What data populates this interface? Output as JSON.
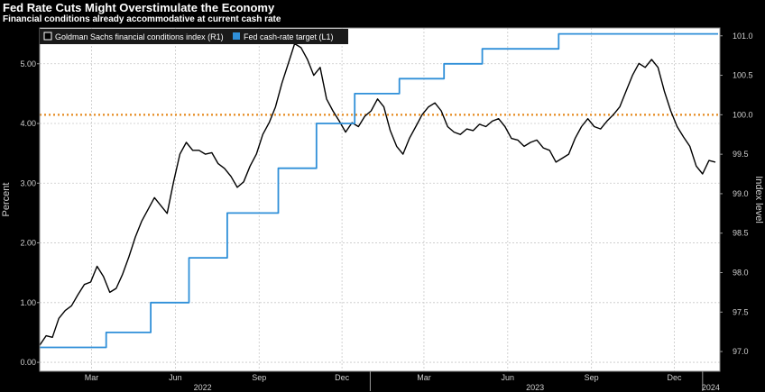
{
  "title": "Fed Rate Cuts Might Overstimulate the Economy",
  "subtitle": "Financial conditions already accommodative at current cash rate",
  "colors": {
    "background": "#ffffff",
    "fci_line": "#000000",
    "fed_line": "#2f8fd8",
    "reference_line": "#e68a1e"
  },
  "chart_data": {
    "type": "line",
    "left_axis": {
      "label": "Percent",
      "ticks": [
        "0.00",
        "1.00",
        "2.00",
        "3.00",
        "4.00",
        "5.00"
      ],
      "range": [
        -0.15,
        5.6
      ]
    },
    "right_axis": {
      "label": "Index level",
      "ticks": [
        "97.0",
        "97.5",
        "98.0",
        "98.5",
        "99.0",
        "99.5",
        "100.0",
        "100.5",
        "101.0"
      ],
      "range": [
        96.75,
        101.1
      ]
    },
    "x_axis": {
      "month_ticks": [
        "Mar",
        "Jun",
        "Sep",
        "Dec",
        "Mar",
        "Jun",
        "Sep",
        "Dec"
      ],
      "year_labels": [
        "2022",
        "2023",
        "2024"
      ],
      "range": [
        "2022-01-03",
        "2024-01-20"
      ]
    },
    "reference_line": {
      "axis": "right",
      "value": 100.0,
      "style": "dotted"
    },
    "legend": {
      "position": "top-left",
      "entries": [
        "Goldman Sachs financial conditions index (R1)",
        "Fed cash-rate target (L1)"
      ]
    },
    "series": [
      {
        "name": "Goldman Sachs financial conditions index (R1)",
        "axis": "right",
        "color": "#000000",
        "points": [
          [
            "2022-01-03",
            97.08
          ],
          [
            "2022-01-10",
            97.2
          ],
          [
            "2022-01-17",
            97.18
          ],
          [
            "2022-01-24",
            97.42
          ],
          [
            "2022-01-31",
            97.52
          ],
          [
            "2022-02-07",
            97.58
          ],
          [
            "2022-02-14",
            97.72
          ],
          [
            "2022-02-21",
            97.85
          ],
          [
            "2022-02-28",
            97.88
          ],
          [
            "2022-03-07",
            98.08
          ],
          [
            "2022-03-14",
            97.95
          ],
          [
            "2022-03-21",
            97.75
          ],
          [
            "2022-03-28",
            97.8
          ],
          [
            "2022-04-04",
            97.98
          ],
          [
            "2022-04-11",
            98.2
          ],
          [
            "2022-04-18",
            98.45
          ],
          [
            "2022-04-25",
            98.65
          ],
          [
            "2022-05-02",
            98.8
          ],
          [
            "2022-05-09",
            98.95
          ],
          [
            "2022-05-16",
            98.85
          ],
          [
            "2022-05-23",
            98.75
          ],
          [
            "2022-05-30",
            99.15
          ],
          [
            "2022-06-06",
            99.5
          ],
          [
            "2022-06-13",
            99.65
          ],
          [
            "2022-06-20",
            99.55
          ],
          [
            "2022-06-27",
            99.55
          ],
          [
            "2022-07-04",
            99.5
          ],
          [
            "2022-07-11",
            99.52
          ],
          [
            "2022-07-18",
            99.38
          ],
          [
            "2022-07-25",
            99.32
          ],
          [
            "2022-08-01",
            99.22
          ],
          [
            "2022-08-08",
            99.08
          ],
          [
            "2022-08-15",
            99.15
          ],
          [
            "2022-08-22",
            99.35
          ],
          [
            "2022-08-29",
            99.5
          ],
          [
            "2022-09-05",
            99.75
          ],
          [
            "2022-09-12",
            99.9
          ],
          [
            "2022-09-19",
            100.1
          ],
          [
            "2022-09-26",
            100.4
          ],
          [
            "2022-10-03",
            100.65
          ],
          [
            "2022-10-10",
            100.9
          ],
          [
            "2022-10-17",
            100.85
          ],
          [
            "2022-10-24",
            100.7
          ],
          [
            "2022-10-31",
            100.5
          ],
          [
            "2022-11-07",
            100.6
          ],
          [
            "2022-11-14",
            100.2
          ],
          [
            "2022-11-21",
            100.05
          ],
          [
            "2022-11-28",
            99.92
          ],
          [
            "2022-12-05",
            99.78
          ],
          [
            "2022-12-12",
            99.9
          ],
          [
            "2022-12-19",
            99.85
          ],
          [
            "2022-12-26",
            99.98
          ],
          [
            "2023-01-02",
            100.05
          ],
          [
            "2023-01-09",
            100.2
          ],
          [
            "2023-01-16",
            100.1
          ],
          [
            "2023-01-23",
            99.8
          ],
          [
            "2023-01-30",
            99.6
          ],
          [
            "2023-02-06",
            99.5
          ],
          [
            "2023-02-13",
            99.7
          ],
          [
            "2023-02-20",
            99.85
          ],
          [
            "2023-02-27",
            100.0
          ],
          [
            "2023-03-06",
            100.1
          ],
          [
            "2023-03-13",
            100.15
          ],
          [
            "2023-03-20",
            100.05
          ],
          [
            "2023-03-27",
            99.85
          ],
          [
            "2023-04-03",
            99.78
          ],
          [
            "2023-04-10",
            99.75
          ],
          [
            "2023-04-17",
            99.82
          ],
          [
            "2023-04-24",
            99.8
          ],
          [
            "2023-05-01",
            99.88
          ],
          [
            "2023-05-08",
            99.85
          ],
          [
            "2023-05-15",
            99.92
          ],
          [
            "2023-05-22",
            99.95
          ],
          [
            "2023-05-29",
            99.85
          ],
          [
            "2023-06-05",
            99.7
          ],
          [
            "2023-06-12",
            99.68
          ],
          [
            "2023-06-19",
            99.6
          ],
          [
            "2023-06-26",
            99.65
          ],
          [
            "2023-07-03",
            99.68
          ],
          [
            "2023-07-10",
            99.58
          ],
          [
            "2023-07-17",
            99.55
          ],
          [
            "2023-07-24",
            99.4
          ],
          [
            "2023-07-31",
            99.45
          ],
          [
            "2023-08-07",
            99.5
          ],
          [
            "2023-08-14",
            99.7
          ],
          [
            "2023-08-21",
            99.85
          ],
          [
            "2023-08-28",
            99.95
          ],
          [
            "2023-09-04",
            99.85
          ],
          [
            "2023-09-11",
            99.82
          ],
          [
            "2023-09-18",
            99.92
          ],
          [
            "2023-09-25",
            100.0
          ],
          [
            "2023-10-02",
            100.1
          ],
          [
            "2023-10-09",
            100.3
          ],
          [
            "2023-10-16",
            100.5
          ],
          [
            "2023-10-23",
            100.65
          ],
          [
            "2023-10-30",
            100.6
          ],
          [
            "2023-11-06",
            100.7
          ],
          [
            "2023-11-13",
            100.6
          ],
          [
            "2023-11-20",
            100.3
          ],
          [
            "2023-11-27",
            100.05
          ],
          [
            "2023-12-04",
            99.85
          ],
          [
            "2023-12-11",
            99.72
          ],
          [
            "2023-12-18",
            99.6
          ],
          [
            "2023-12-25",
            99.35
          ],
          [
            "2024-01-01",
            99.25
          ],
          [
            "2024-01-08",
            99.42
          ],
          [
            "2024-01-15",
            99.4
          ]
        ]
      },
      {
        "name": "Fed cash-rate target (L1)",
        "axis": "left",
        "color": "#2f8fd8",
        "step": true,
        "points": [
          [
            "2022-01-03",
            0.25
          ],
          [
            "2022-03-17",
            0.5
          ],
          [
            "2022-05-05",
            1.0
          ],
          [
            "2022-06-16",
            1.75
          ],
          [
            "2022-07-28",
            2.5
          ],
          [
            "2022-09-22",
            3.25
          ],
          [
            "2022-11-03",
            4.0
          ],
          [
            "2022-12-15",
            4.5
          ],
          [
            "2023-02-02",
            4.75
          ],
          [
            "2023-03-23",
            5.0
          ],
          [
            "2023-05-04",
            5.25
          ],
          [
            "2023-07-27",
            5.5
          ],
          [
            "2024-01-18",
            5.5
          ]
        ]
      }
    ]
  }
}
